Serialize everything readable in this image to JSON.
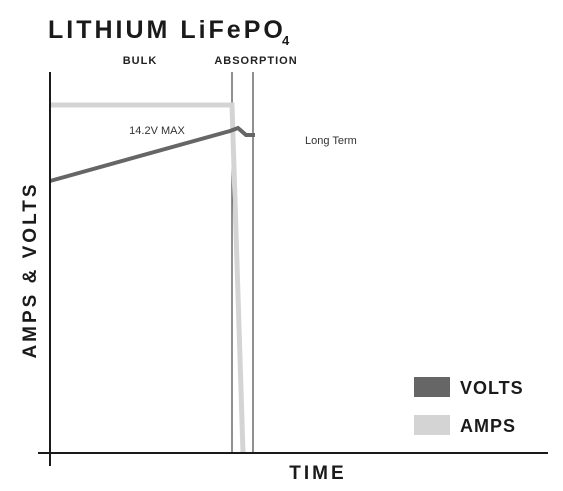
{
  "title": {
    "text": "LITHIUM LiFePO",
    "subscript": "4"
  },
  "phases": [
    "BULK",
    "ABSORPTION"
  ],
  "annotations": {
    "max_voltage": "14.2V MAX",
    "long_term": "Long Term"
  },
  "axes": {
    "y_label": "AMPS & VOLTS",
    "x_label": "TIME"
  },
  "legend": [
    {
      "name": "VOLTS",
      "color": "#666666"
    },
    {
      "name": "AMPS",
      "color": "#d4d4d4"
    }
  ]
}
